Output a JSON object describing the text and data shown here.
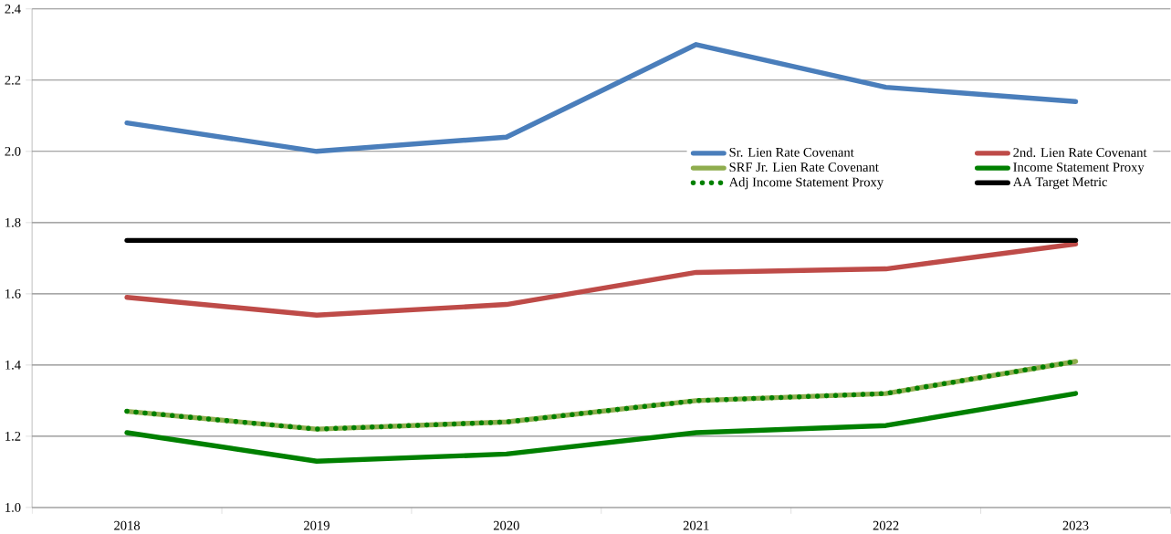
{
  "chart_data": {
    "type": "line",
    "categories": [
      "2018",
      "2019",
      "2020",
      "2021",
      "2022",
      "2023"
    ],
    "series": [
      {
        "name": "Sr. Lien Rate Covenant",
        "color": "#4a7ebb",
        "values": [
          2.08,
          2.0,
          2.04,
          2.3,
          2.18,
          2.14
        ]
      },
      {
        "name": "2nd. Lien Rate Covenant",
        "color": "#be4b48",
        "values": [
          1.59,
          1.54,
          1.57,
          1.66,
          1.67,
          1.74
        ]
      },
      {
        "name": "SRF Jr. Lien Rate Covenant",
        "color": "#8fad4e",
        "values": [
          1.27,
          1.22,
          1.24,
          1.3,
          1.32,
          1.41
        ]
      },
      {
        "name": "Income Statement Proxy",
        "color": "#008000",
        "values": [
          1.21,
          1.13,
          1.15,
          1.21,
          1.23,
          1.32
        ]
      },
      {
        "name": "Adj Income Statement Proxy",
        "color": "#008000",
        "line_style": "dotted",
        "values": [
          1.27,
          1.22,
          1.24,
          1.3,
          1.32,
          1.41
        ]
      },
      {
        "name": "AA Target Metric",
        "color": "#000000",
        "values": [
          1.75,
          1.75,
          1.75,
          1.75,
          1.75,
          1.75
        ]
      }
    ],
    "ylim": [
      1.0,
      2.4
    ],
    "yticks": [
      {
        "value": 1.0,
        "label": "1.0"
      },
      1.2,
      1.4,
      1.6,
      1.8,
      {
        "value": 2.0,
        "label": "2.0"
      },
      2.2,
      2.4
    ],
    "grid": "y",
    "legend": "top right",
    "marker": "none",
    "line_style": "solid"
  }
}
